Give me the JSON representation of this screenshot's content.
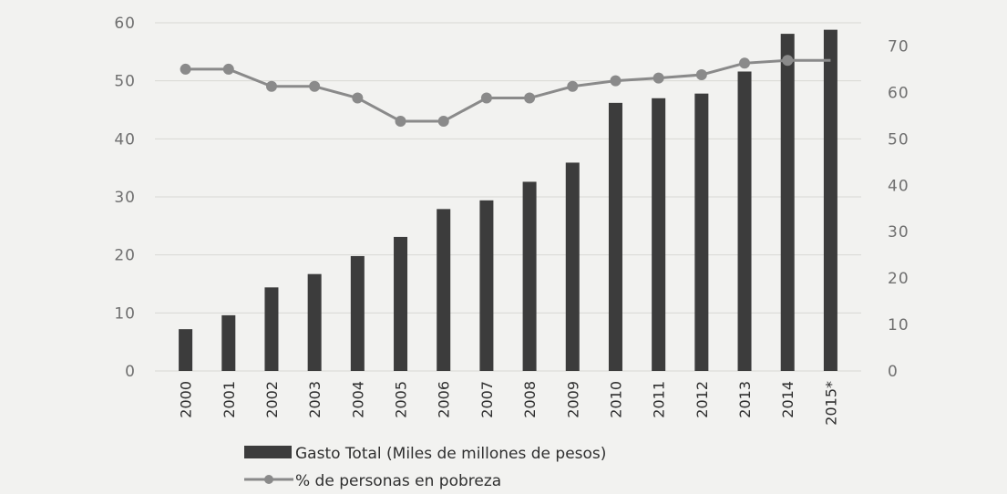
{
  "chart_data": {
    "type": "bar+line",
    "categories": [
      "2000",
      "2001",
      "2002",
      "2003",
      "2004",
      "2005",
      "2006",
      "2007",
      "2008",
      "2009",
      "2010",
      "2011",
      "2012",
      "2013",
      "2014",
      "2015*"
    ],
    "series": [
      {
        "name": "Gasto Total (Miles de millones de pesos)",
        "type": "bar",
        "axis": "left",
        "values": [
          7.2,
          9.6,
          14.4,
          16.7,
          19.8,
          23.1,
          27.9,
          29.4,
          32.6,
          35.9,
          46.2,
          47.0,
          47.8,
          51.6,
          58.1,
          58.8
        ]
      },
      {
        "name": "% de personas en pobreza",
        "type": "line",
        "axis": "right",
        "values": [
          65.0,
          65.0,
          61.3,
          61.3,
          58.8,
          53.8,
          53.8,
          58.8,
          58.8,
          61.3,
          62.5,
          63.1,
          63.8,
          66.3,
          66.9,
          66.9
        ]
      }
    ],
    "y_left": {
      "ylim": [
        0,
        60
      ],
      "ticks": [
        "0",
        "10",
        "20",
        "30",
        "40",
        "50",
        "60"
      ]
    },
    "y_right": {
      "ylim": [
        0,
        75
      ],
      "ticks": [
        "0",
        "10",
        "20",
        "30",
        "40",
        "50",
        "60",
        "70"
      ]
    },
    "grid": true,
    "legend_position": "bottom",
    "colors": {
      "bar": "#3c3c3c",
      "line": "#8a8a8a",
      "grid": "#d8d8d4",
      "background": "#f2f2f0"
    }
  }
}
